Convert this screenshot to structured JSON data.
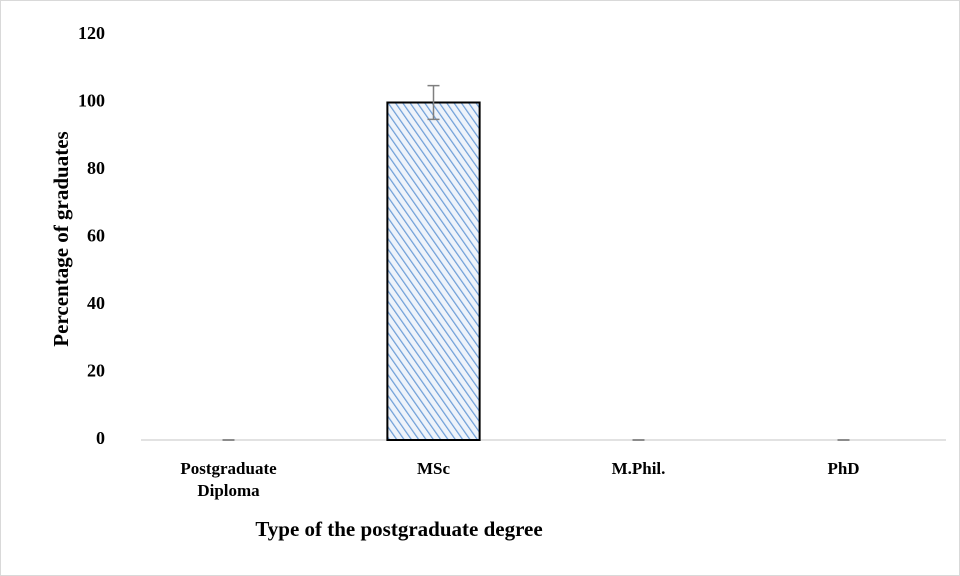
{
  "chart_data": {
    "type": "bar",
    "categories": [
      "Postgraduate Diploma",
      "MSc",
      "M.Phil.",
      "PhD"
    ],
    "values": [
      0,
      100,
      0,
      0
    ],
    "errors": [
      0,
      5,
      0,
      0
    ],
    "color": "#6f9fd8",
    "error_color": "#7f7f7f",
    "ylim": [
      0,
      120
    ],
    "yticks": [
      0,
      20,
      40,
      60,
      80,
      100,
      120
    ],
    "grid": false,
    "xlabel": "Type of the postgraduate degree",
    "ylabel": "Percentage of graduates"
  }
}
